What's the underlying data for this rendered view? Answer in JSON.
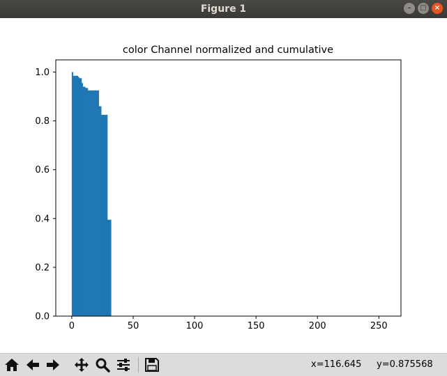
{
  "window": {
    "title": "Figure 1"
  },
  "toolbar": {
    "tools": [
      {
        "name": "home-icon"
      },
      {
        "name": "back-arrow-icon"
      },
      {
        "name": "forward-arrow-icon"
      },
      {
        "name": "pan-icon"
      },
      {
        "name": "zoom-icon"
      },
      {
        "name": "configure-subplots-icon"
      },
      {
        "name": "save-icon"
      }
    ],
    "x_readout": "x=116.645",
    "y_readout": "y=0.875568"
  },
  "chart_data": {
    "type": "bar",
    "title": "color Channel normalized and cumulative",
    "xlabel": "",
    "ylabel": "",
    "xlim": [
      -13,
      268
    ],
    "ylim": [
      0,
      1.05
    ],
    "x_ticks": [
      0,
      50,
      100,
      150,
      200,
      250
    ],
    "y_ticks": [
      0.0,
      0.2,
      0.4,
      0.6,
      0.8,
      1.0
    ],
    "y_tick_labels": [
      "0.0",
      "0.2",
      "0.4",
      "0.6",
      "0.8",
      "1.0"
    ],
    "bar_color": "#1f77b4",
    "bin_width": 1,
    "x": [
      0,
      1,
      2,
      3,
      4,
      5,
      6,
      7,
      8,
      9,
      10,
      11,
      12,
      13,
      14,
      15,
      16,
      17,
      18,
      19,
      20,
      21,
      22,
      23,
      24,
      25,
      26,
      27,
      28,
      29,
      30,
      31
    ],
    "values": [
      1.0,
      0.985,
      0.985,
      0.985,
      0.985,
      0.98,
      0.975,
      0.975,
      0.955,
      0.94,
      0.94,
      0.935,
      0.935,
      0.925,
      0.925,
      0.925,
      0.925,
      0.925,
      0.925,
      0.925,
      0.925,
      0.925,
      0.86,
      0.86,
      0.825,
      0.825,
      0.825,
      0.825,
      0.825,
      0.395,
      0.395,
      0.395
    ],
    "grid": false,
    "legend": "none"
  }
}
